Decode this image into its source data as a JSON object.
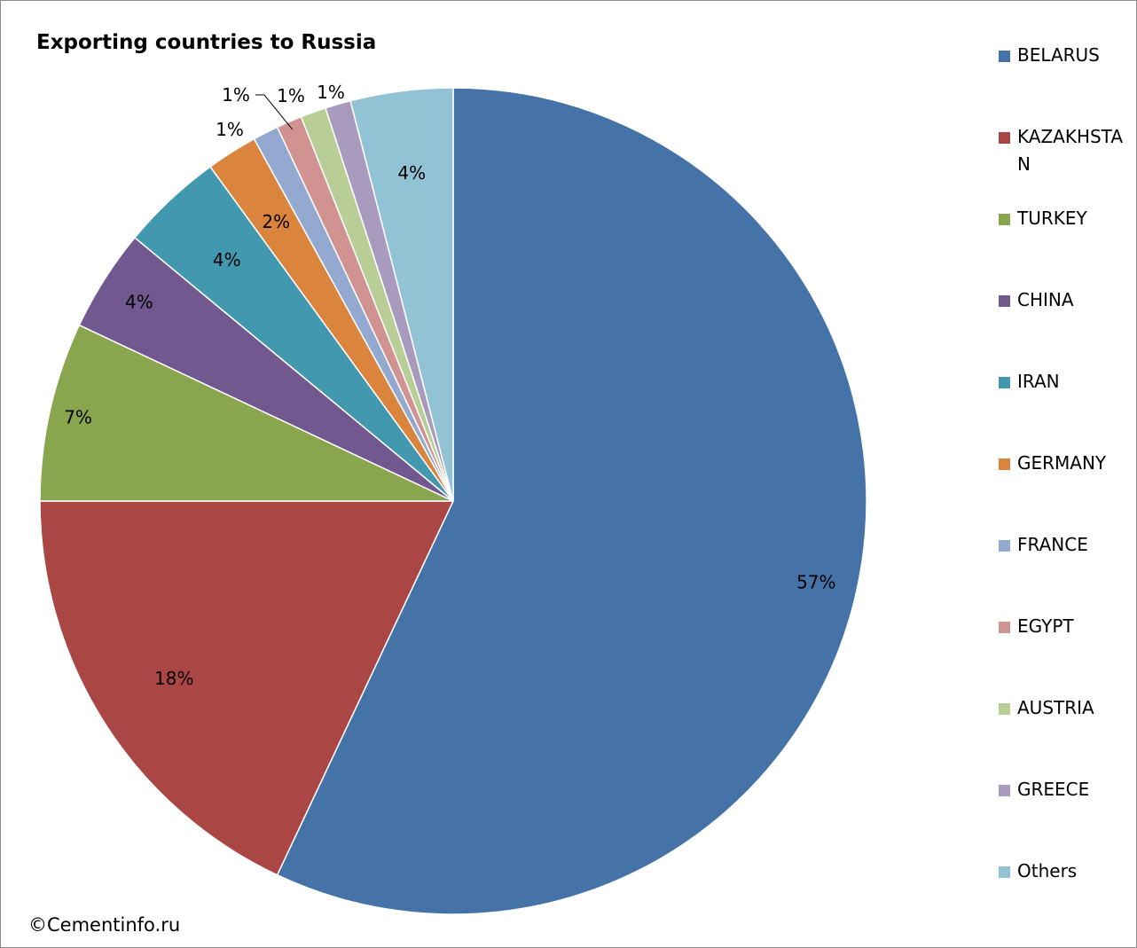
{
  "chart_data": {
    "type": "pie",
    "title": "Exporting countries to Russia",
    "labels": [
      "BELARUS",
      "KAZAKHSTAN",
      "TURKEY",
      "CHINA",
      "IRAN",
      "GERMANY",
      "FRANCE",
      "EGYPT",
      "AUSTRIA",
      "GREECE",
      "Others"
    ],
    "values": [
      57,
      18,
      7,
      4,
      4,
      2,
      1,
      1,
      1,
      1,
      4
    ],
    "data_labels": [
      "57%",
      "18%",
      "7%",
      "4%",
      "4%",
      "2%",
      "1%",
      "1%",
      "1%",
      "1%",
      "4%"
    ],
    "colors": [
      "#4572A7",
      "#AA4643",
      "#89A54E",
      "#71588F",
      "#4198AF",
      "#DB843D",
      "#93A9CF",
      "#D19392",
      "#B9CD96",
      "#A99BBD",
      "#92C3D5"
    ],
    "legend_position": "right",
    "start_angle": "12 o'clock",
    "direction": "clockwise"
  },
  "footer": {
    "copyright": "©Cementinfo.ru"
  }
}
